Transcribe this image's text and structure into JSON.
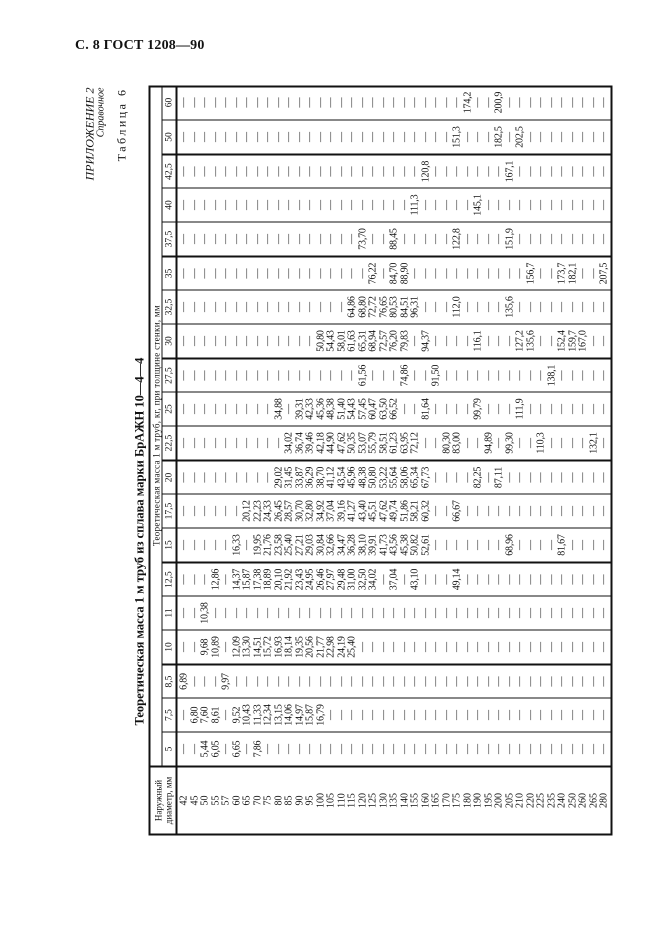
{
  "page_header": "С. 8 ГОСТ 1208—90",
  "appendix": {
    "label": "ПРИЛОЖЕНИЕ 2",
    "type": "Справочное"
  },
  "table_number": "Таблица 6",
  "title": "Теоретическая масса 1 м труб из сплава марки БрАЖН 10—4—4",
  "table": {
    "diameter_header": "Наружный диаметр, мм",
    "mass_header": "Теоретическая масса 1 м труб, кг, при толщине стенки, мм",
    "thicknesses": [
      "5",
      "7,5",
      "8,5",
      "10",
      "11",
      "12,5",
      "15",
      "17,5",
      "20",
      "22,5",
      "25",
      "27,5",
      "30",
      "32,5",
      "35",
      "37,5",
      "40",
      "42,5",
      "50",
      "60"
    ],
    "rows": [
      {
        "d": "42",
        "v": [
          "—",
          "—",
          "6,89",
          "—",
          "—",
          "—",
          "—",
          "—",
          "—",
          "—",
          "—",
          "—",
          "—",
          "—",
          "—",
          "—",
          "—",
          "—",
          "—",
          "—"
        ]
      },
      {
        "d": "45",
        "v": [
          "—",
          "6,80",
          "—",
          "—",
          "—",
          "—",
          "—",
          "—",
          "—",
          "—",
          "—",
          "—",
          "—",
          "—",
          "—",
          "—",
          "—",
          "—",
          "—",
          "—"
        ]
      },
      {
        "d": "50",
        "v": [
          "5,44",
          "7,60",
          "—",
          "9,68",
          "10,38",
          "—",
          "—",
          "—",
          "—",
          "—",
          "—",
          "—",
          "—",
          "—",
          "—",
          "—",
          "—",
          "—",
          "—",
          "—"
        ]
      },
      {
        "d": "55",
        "v": [
          "6,05",
          "8,61",
          "—",
          "10,89",
          "—",
          "12,86",
          "—",
          "—",
          "—",
          "—",
          "—",
          "—",
          "—",
          "—",
          "—",
          "—",
          "—",
          "—",
          "—",
          "—"
        ]
      },
      {
        "d": "57",
        "v": [
          "—",
          "—",
          "9,97",
          "—",
          "—",
          "—",
          "—",
          "—",
          "—",
          "—",
          "—",
          "—",
          "—",
          "—",
          "—",
          "—",
          "—",
          "—",
          "—",
          "—"
        ]
      },
      {
        "d": "60",
        "v": [
          "6,65",
          "9,52",
          "—",
          "12,09",
          "—",
          "14,37",
          "16,33",
          "—",
          "—",
          "—",
          "—",
          "—",
          "—",
          "—",
          "—",
          "—",
          "—",
          "—",
          "—",
          "—"
        ]
      },
      {
        "d": "65",
        "v": [
          "—",
          "10,43",
          "—",
          "13,30",
          "—",
          "15,87",
          "—",
          "20,12",
          "—",
          "—",
          "—",
          "—",
          "—",
          "—",
          "—",
          "—",
          "—",
          "—",
          "—",
          "—"
        ]
      },
      {
        "d": "70",
        "v": [
          "7,86",
          "11,33",
          "—",
          "14,51",
          "—",
          "17,38",
          "19,95",
          "22,23",
          "—",
          "—",
          "—",
          "—",
          "—",
          "—",
          "—",
          "—",
          "—",
          "—",
          "—",
          "—"
        ]
      },
      {
        "d": "75",
        "v": [
          "—",
          "12,34",
          "—",
          "15,72",
          "—",
          "18,89",
          "21,76",
          "24,33",
          "—",
          "—",
          "—",
          "—",
          "—",
          "—",
          "—",
          "—",
          "—",
          "—",
          "—",
          "—"
        ]
      },
      {
        "d": "80",
        "v": [
          "—",
          "13,15",
          "—",
          "16,93",
          "—",
          "20,10",
          "23,58",
          "26,45",
          "29,02",
          "—",
          "34,88",
          "—",
          "—",
          "—",
          "—",
          "—",
          "—",
          "—",
          "—",
          "—"
        ]
      },
      {
        "d": "85",
        "v": [
          "—",
          "14,06",
          "—",
          "18,14",
          "—",
          "21,92",
          "25,40",
          "28,57",
          "31,45",
          "34,02",
          "—",
          "—",
          "—",
          "—",
          "—",
          "—",
          "—",
          "—",
          "—",
          "—"
        ]
      },
      {
        "d": "90",
        "v": [
          "—",
          "14,97",
          "—",
          "19,35",
          "—",
          "23,43",
          "27,21",
          "30,70",
          "33,87",
          "36,74",
          "39,31",
          "—",
          "—",
          "—",
          "—",
          "—",
          "—",
          "—",
          "—",
          "—"
        ]
      },
      {
        "d": "95",
        "v": [
          "—",
          "15,87",
          "—",
          "20,56",
          "—",
          "24,95",
          "29,03",
          "32,80",
          "36,29",
          "39,46",
          "42,33",
          "—",
          "—",
          "—",
          "—",
          "—",
          "—",
          "—",
          "—",
          "—"
        ]
      },
      {
        "d": "100",
        "v": [
          "—",
          "16,79",
          "—",
          "21,77",
          "—",
          "26,46",
          "30,84",
          "34,92",
          "38,70",
          "42,18",
          "45,36",
          "—",
          "50,80",
          "—",
          "—",
          "—",
          "—",
          "—",
          "—",
          "—"
        ]
      },
      {
        "d": "105",
        "v": [
          "—",
          "—",
          "—",
          "22,98",
          "—",
          "27,97",
          "32,66",
          "37,04",
          "41,12",
          "44,90",
          "48,38",
          "—",
          "54,43",
          "—",
          "—",
          "—",
          "—",
          "—",
          "—",
          "—"
        ]
      },
      {
        "d": "110",
        "v": [
          "—",
          "—",
          "—",
          "24,19",
          "—",
          "29,48",
          "34,47",
          "39,16",
          "43,54",
          "47,62",
          "51,40",
          "—",
          "58,01",
          "—",
          "—",
          "—",
          "—",
          "—",
          "—",
          "—"
        ]
      },
      {
        "d": "115",
        "v": [
          "—",
          "—",
          "—",
          "25,40",
          "—",
          "31,00",
          "36,28",
          "41,27",
          "45,96",
          "50,35",
          "54,43",
          "—",
          "61,63",
          "64,86",
          "—",
          "—",
          "—",
          "—",
          "—",
          "—"
        ]
      },
      {
        "d": "120",
        "v": [
          "—",
          "—",
          "—",
          "—",
          "—",
          "32,50",
          "38,10",
          "43,40",
          "48,38",
          "53,07",
          "57,45",
          "61,56",
          "65,31",
          "68,80",
          "—",
          "73,70",
          "—",
          "—",
          "—",
          "—"
        ]
      },
      {
        "d": "125",
        "v": [
          "—",
          "—",
          "—",
          "—",
          "—",
          "34,02",
          "39,91",
          "45,51",
          "50,80",
          "55,79",
          "60,47",
          "—",
          "68,94",
          "72,72",
          "76,22",
          "—",
          "—",
          "—",
          "—",
          "—"
        ]
      },
      {
        "d": "130",
        "v": [
          "—",
          "—",
          "—",
          "—",
          "—",
          "—",
          "41,73",
          "47,62",
          "53,22",
          "58,51",
          "63,50",
          "—",
          "72,57",
          "76,65",
          "—",
          "—",
          "—",
          "—",
          "—",
          "—"
        ]
      },
      {
        "d": "135",
        "v": [
          "—",
          "—",
          "—",
          "—",
          "—",
          "37,04",
          "43,56",
          "49,74",
          "55,64",
          "61,23",
          "66,52",
          "—",
          "76,20",
          "80,53",
          "84,70",
          "88,45",
          "—",
          "—",
          "—",
          "—"
        ]
      },
      {
        "d": "140",
        "v": [
          "—",
          "—",
          "—",
          "—",
          "—",
          "—",
          "45,38",
          "51,86",
          "58,06",
          "63,95",
          "—",
          "74,86",
          "79,83",
          "84,51",
          "88,90",
          "—",
          "—",
          "—",
          "—",
          "—"
        ]
      },
      {
        "d": "155",
        "v": [
          "—",
          "—",
          "—",
          "—",
          "—",
          "43,10",
          "50,82",
          "58,21",
          "65,34",
          "72,12",
          "—",
          "—",
          "—",
          "96,31",
          "—",
          "—",
          "111,3",
          "—",
          "—",
          "—"
        ]
      },
      {
        "d": "160",
        "v": [
          "—",
          "—",
          "—",
          "—",
          "—",
          "—",
          "52,61",
          "60,32",
          "67,73",
          "—",
          "81,64",
          "—",
          "94,37",
          "—",
          "—",
          "—",
          "—",
          "120,8",
          "—",
          "—"
        ]
      },
      {
        "d": "165",
        "v": [
          "—",
          "—",
          "—",
          "—",
          "—",
          "—",
          "—",
          "—",
          "—",
          "—",
          "—",
          "91,50",
          "—",
          "—",
          "—",
          "—",
          "—",
          "—",
          "—",
          "—"
        ]
      },
      {
        "d": "170",
        "v": [
          "—",
          "—",
          "—",
          "—",
          "—",
          "—",
          "—",
          "—",
          "—",
          "80,30",
          "—",
          "—",
          "—",
          "—",
          "—",
          "—",
          "—",
          "—",
          "—",
          "—"
        ]
      },
      {
        "d": "175",
        "v": [
          "—",
          "—",
          "—",
          "—",
          "—",
          "49,14",
          "—",
          "66,67",
          "—",
          "83,00",
          "—",
          "—",
          "—",
          "112,0",
          "—",
          "122,8",
          "—",
          "—",
          "151,3",
          "—"
        ]
      },
      {
        "d": "180",
        "v": [
          "—",
          "—",
          "—",
          "—",
          "—",
          "—",
          "—",
          "—",
          "—",
          "—",
          "—",
          "—",
          "—",
          "—",
          "—",
          "—",
          "—",
          "—",
          "—",
          "174,2"
        ]
      },
      {
        "d": "190",
        "v": [
          "—",
          "—",
          "—",
          "—",
          "—",
          "—",
          "—",
          "—",
          "82,25",
          "—",
          "99,79",
          "—",
          "116,1",
          "—",
          "—",
          "—",
          "145,1",
          "—",
          "—",
          "—"
        ]
      },
      {
        "d": "195",
        "v": [
          "—",
          "—",
          "—",
          "—",
          "—",
          "—",
          "—",
          "—",
          "—",
          "94,89",
          "—",
          "—",
          "—",
          "—",
          "—",
          "—",
          "—",
          "—",
          "—",
          "—"
        ]
      },
      {
        "d": "200",
        "v": [
          "—",
          "—",
          "—",
          "—",
          "—",
          "—",
          "—",
          "—",
          "87,11",
          "—",
          "—",
          "—",
          "—",
          "—",
          "—",
          "—",
          "—",
          "—",
          "182,5",
          "200,9"
        ]
      },
      {
        "d": "205",
        "v": [
          "—",
          "—",
          "—",
          "—",
          "—",
          "—",
          "68,96",
          "—",
          "—",
          "99,30",
          "—",
          "—",
          "—",
          "135,6",
          "—",
          "151,9",
          "—",
          "167,1",
          "—",
          "—"
        ]
      },
      {
        "d": "210",
        "v": [
          "—",
          "—",
          "—",
          "—",
          "—",
          "—",
          "—",
          "—",
          "—",
          "—",
          "111,9",
          "—",
          "127,2",
          "—",
          "—",
          "—",
          "—",
          "—",
          "202,5",
          "—"
        ]
      },
      {
        "d": "220",
        "v": [
          "—",
          "—",
          "—",
          "—",
          "—",
          "—",
          "—",
          "—",
          "—",
          "—",
          "—",
          "—",
          "135,6",
          "—",
          "156,7",
          "—",
          "—",
          "—",
          "—",
          "—"
        ]
      },
      {
        "d": "225",
        "v": [
          "—",
          "—",
          "—",
          "—",
          "—",
          "—",
          "—",
          "—",
          "—",
          "110,3",
          "—",
          "—",
          "—",
          "—",
          "—",
          "—",
          "—",
          "—",
          "—",
          "—"
        ]
      },
      {
        "d": "235",
        "v": [
          "—",
          "—",
          "—",
          "—",
          "—",
          "—",
          "—",
          "—",
          "—",
          "—",
          "—",
          "138,1",
          "—",
          "—",
          "—",
          "—",
          "—",
          "—",
          "—",
          "—"
        ]
      },
      {
        "d": "240",
        "v": [
          "—",
          "—",
          "—",
          "—",
          "—",
          "—",
          "81,67",
          "—",
          "—",
          "—",
          "—",
          "—",
          "152,4",
          "—",
          "173,7",
          "—",
          "—",
          "—",
          "—",
          "—"
        ]
      },
      {
        "d": "250",
        "v": [
          "—",
          "—",
          "—",
          "—",
          "—",
          "—",
          "—",
          "—",
          "—",
          "—",
          "—",
          "—",
          "159,7",
          "—",
          "182,1",
          "—",
          "—",
          "—",
          "—",
          "—"
        ]
      },
      {
        "d": "260",
        "v": [
          "—",
          "—",
          "—",
          "—",
          "—",
          "—",
          "—",
          "—",
          "—",
          "—",
          "—",
          "—",
          "167,0",
          "—",
          "—",
          "—",
          "—",
          "—",
          "—",
          "—"
        ]
      },
      {
        "d": "265",
        "v": [
          "—",
          "—",
          "—",
          "—",
          "—",
          "—",
          "—",
          "—",
          "—",
          "132,1",
          "—",
          "—",
          "—",
          "—",
          "—",
          "—",
          "—",
          "—",
          "—",
          "—"
        ]
      },
      {
        "d": "280",
        "v": [
          "—",
          "—",
          "—",
          "—",
          "—",
          "—",
          "—",
          "—",
          "—",
          "—",
          "—",
          "—",
          "—",
          "—",
          "207,5",
          "—",
          "—",
          "—",
          "—",
          "—"
        ]
      }
    ]
  }
}
